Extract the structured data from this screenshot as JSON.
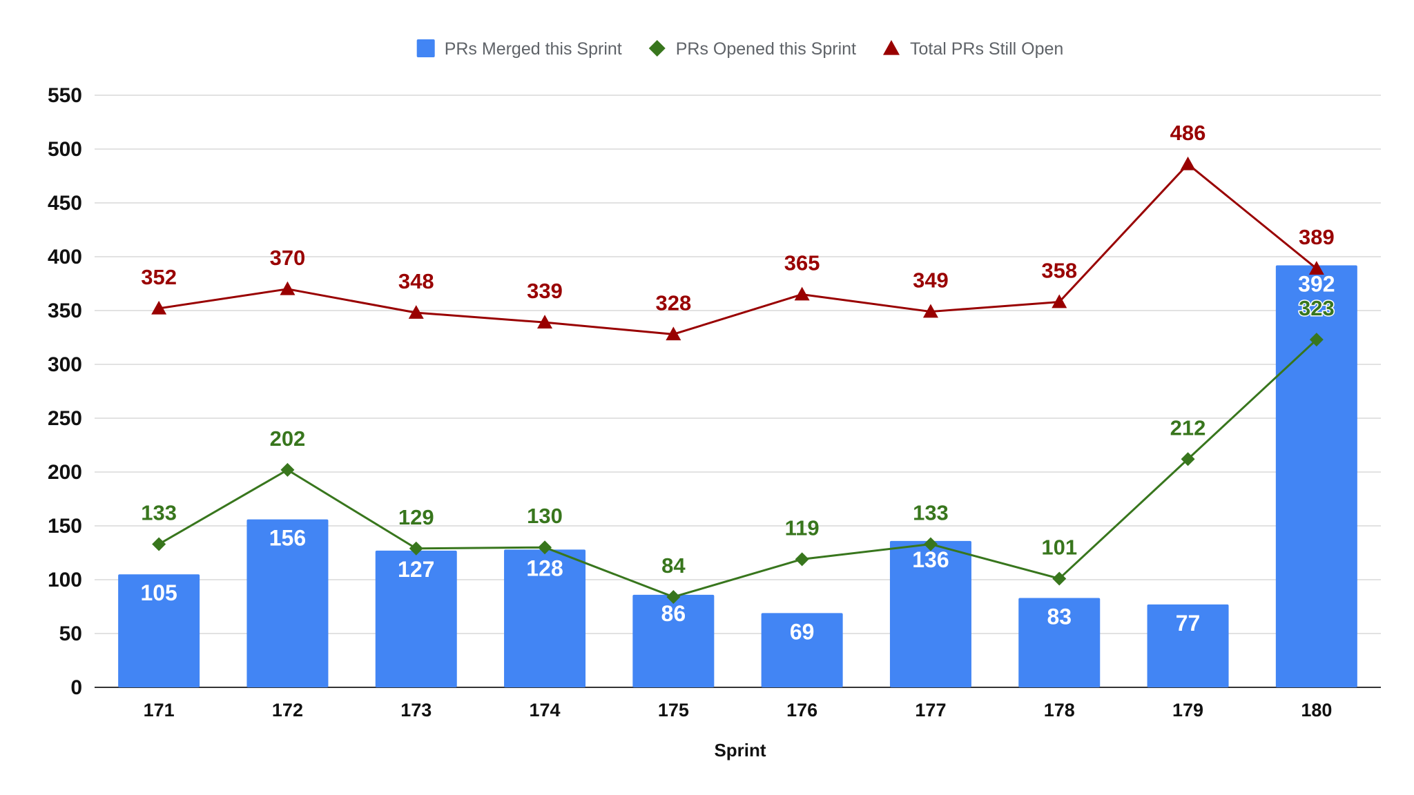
{
  "chart_data": {
    "type": "bar",
    "title": "",
    "xlabel": "Sprint",
    "ylabel": "",
    "ylim": [
      0,
      550
    ],
    "yticks": [
      0,
      50,
      100,
      150,
      200,
      250,
      300,
      350,
      400,
      450,
      500,
      550
    ],
    "grid": true,
    "legend_position": "top",
    "categories": [
      "171",
      "172",
      "173",
      "174",
      "175",
      "176",
      "177",
      "178",
      "179",
      "180"
    ],
    "series": [
      {
        "name": "PRs Merged this Sprint",
        "kind": "bar",
        "marker": "square",
        "color": "#4285f4",
        "values": [
          105,
          156,
          127,
          128,
          86,
          69,
          136,
          83,
          77,
          392
        ]
      },
      {
        "name": "PRs Opened this Sprint",
        "kind": "line",
        "marker": "diamond",
        "color": "#38761d",
        "values": [
          133,
          202,
          129,
          130,
          84,
          119,
          133,
          101,
          212,
          323
        ]
      },
      {
        "name": "Total PRs Still Open",
        "kind": "line",
        "marker": "triangle",
        "color": "#990000",
        "values": [
          352,
          370,
          348,
          339,
          328,
          365,
          349,
          358,
          486,
          389
        ]
      }
    ]
  }
}
